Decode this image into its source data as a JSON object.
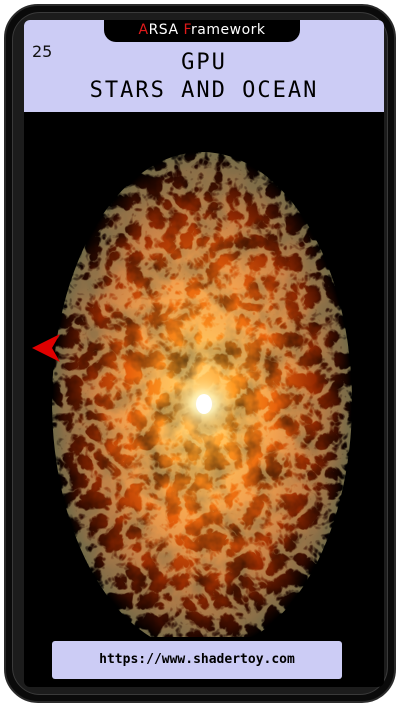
{
  "header": {
    "framework_a_initial": "A",
    "framework_a_rest": "RSA ",
    "framework_f_initial": "F",
    "framework_f_rest": "ramework",
    "fps": "25",
    "title_line1": "GPU",
    "title_line2": "STARS AND OCEAN"
  },
  "render": {
    "icon": "nav-left-arrow",
    "arrow_color": "#e00000"
  },
  "footer": {
    "url": "https://www.shadertoy.com"
  },
  "colors": {
    "header_bg": "#ccccf5",
    "accent_red": "#e01a1a",
    "fire_core": "#fff6d8",
    "fire_mid": "#ff8a1a",
    "fire_outer": "#8a2500"
  }
}
